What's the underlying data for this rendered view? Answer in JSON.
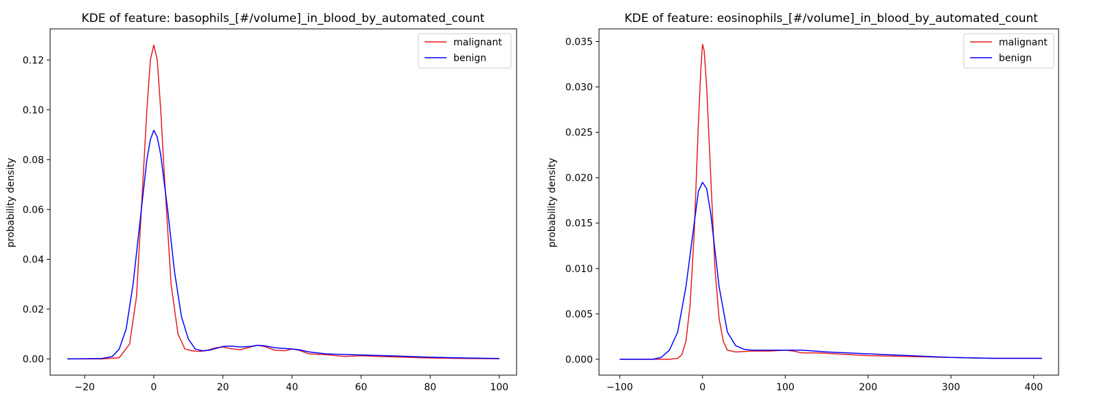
{
  "colors": {
    "malignant": "#e41a1c",
    "benign": "#0000ff"
  },
  "chart_data": [
    {
      "type": "line",
      "title": "KDE of feature: basophils_[#/volume]_in_blood_by_automated_count",
      "xlabel": "",
      "ylabel": "probability density",
      "xlim": [
        -30,
        105
      ],
      "ylim": [
        -0.0065,
        0.1325
      ],
      "xticks": [
        -20,
        0,
        20,
        40,
        60,
        80,
        100
      ],
      "yticks": [
        0.0,
        0.02,
        0.04,
        0.06,
        0.08,
        0.1,
        0.12
      ],
      "xtick_labels": [
        "−20",
        "0",
        "20",
        "40",
        "60",
        "80",
        "100"
      ],
      "ytick_labels": [
        "0.00",
        "0.02",
        "0.04",
        "0.06",
        "0.08",
        "0.10",
        "0.12"
      ],
      "grid": false,
      "legend": "top-right",
      "series": [
        {
          "name": "malignant",
          "x": [
            -25,
            -15,
            -10,
            -7,
            -5,
            -3,
            -2,
            -1,
            0,
            1,
            2,
            3,
            5,
            7,
            9,
            11,
            13,
            15,
            18,
            20,
            22,
            25,
            28,
            30,
            32,
            35,
            38,
            40,
            42,
            45,
            50,
            55,
            60,
            65,
            70,
            80,
            90,
            100
          ],
          "y": [
            0.0,
            0.0,
            0.0005,
            0.006,
            0.025,
            0.075,
            0.1,
            0.12,
            0.126,
            0.12,
            0.1,
            0.075,
            0.03,
            0.01,
            0.004,
            0.0033,
            0.003,
            0.0033,
            0.0045,
            0.0048,
            0.0042,
            0.0037,
            0.0048,
            0.0055,
            0.005,
            0.0035,
            0.0033,
            0.004,
            0.0035,
            0.002,
            0.0017,
            0.001,
            0.0013,
            0.001,
            0.0008,
            0.0004,
            0.0002,
            0.0001
          ]
        },
        {
          "name": "benign",
          "x": [
            -25,
            -15,
            -12,
            -10,
            -8,
            -6,
            -4,
            -2,
            -1,
            0,
            1,
            2,
            4,
            6,
            8,
            10,
            12,
            14,
            16,
            18,
            20,
            22,
            25,
            28,
            30,
            32,
            35,
            38,
            40,
            42,
            45,
            50,
            55,
            60,
            65,
            70,
            80,
            90,
            100
          ],
          "y": [
            0.0,
            0.0002,
            0.001,
            0.004,
            0.012,
            0.03,
            0.055,
            0.08,
            0.088,
            0.0918,
            0.089,
            0.082,
            0.06,
            0.035,
            0.017,
            0.008,
            0.004,
            0.0033,
            0.0035,
            0.0042,
            0.005,
            0.0052,
            0.0048,
            0.005,
            0.0055,
            0.0053,
            0.0045,
            0.0042,
            0.004,
            0.0037,
            0.0028,
            0.002,
            0.0018,
            0.0016,
            0.0014,
            0.0012,
            0.0007,
            0.0004,
            0.0002
          ]
        }
      ]
    },
    {
      "type": "line",
      "title": "KDE of feature: eosinophils_[#/volume]_in_blood_by_automated_count",
      "xlabel": "",
      "ylabel": "probability density",
      "xlim": [
        -125,
        430
      ],
      "ylim": [
        -0.00175,
        0.0364
      ],
      "xticks": [
        -100,
        0,
        100,
        200,
        300,
        400
      ],
      "yticks": [
        0.0,
        0.005,
        0.01,
        0.015,
        0.02,
        0.025,
        0.03,
        0.035
      ],
      "xtick_labels": [
        "−100",
        "0",
        "100",
        "200",
        "300",
        "400"
      ],
      "ytick_labels": [
        "0.000",
        "0.005",
        "0.010",
        "0.015",
        "0.020",
        "0.025",
        "0.030",
        "0.035"
      ],
      "grid": false,
      "legend": "top-right",
      "series": [
        {
          "name": "malignant",
          "x": [
            -100,
            -40,
            -30,
            -25,
            -20,
            -15,
            -10,
            -5,
            -2,
            0,
            2,
            5,
            10,
            15,
            20,
            25,
            30,
            40,
            60,
            80,
            100,
            110,
            120,
            140,
            160,
            200,
            250,
            300,
            350,
            410
          ],
          "y": [
            0.0,
            0.0,
            0.0001,
            0.0005,
            0.002,
            0.006,
            0.014,
            0.026,
            0.032,
            0.0347,
            0.034,
            0.03,
            0.02,
            0.01,
            0.0045,
            0.002,
            0.001,
            0.0008,
            0.0009,
            0.0009,
            0.001,
            0.0009,
            0.0007,
            0.0007,
            0.0006,
            0.0004,
            0.0003,
            0.0002,
            0.0001,
            0.0001
          ]
        },
        {
          "name": "benign",
          "x": [
            -100,
            -60,
            -50,
            -40,
            -30,
            -20,
            -10,
            -5,
            0,
            5,
            10,
            15,
            20,
            30,
            40,
            50,
            60,
            80,
            100,
            120,
            150,
            200,
            250,
            300,
            350,
            410
          ],
          "y": [
            0.0,
            0.0,
            0.0002,
            0.001,
            0.003,
            0.008,
            0.015,
            0.0185,
            0.0195,
            0.0188,
            0.016,
            0.012,
            0.008,
            0.003,
            0.0015,
            0.0011,
            0.001,
            0.001,
            0.001,
            0.001,
            0.0008,
            0.0006,
            0.0004,
            0.0002,
            0.0001,
            0.0001
          ]
        }
      ]
    }
  ]
}
